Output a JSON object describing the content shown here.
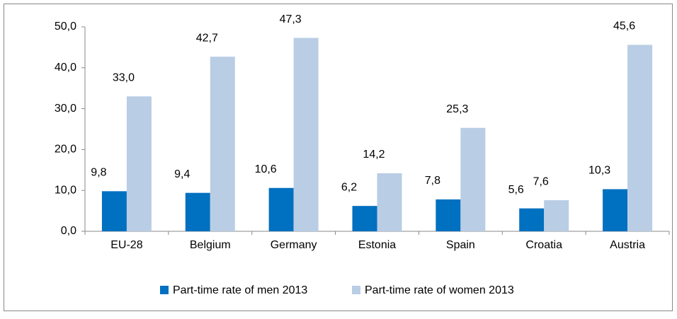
{
  "chart_data": {
    "type": "bar",
    "categories": [
      "EU-28",
      "Belgium",
      "Germany",
      "Estonia",
      "Spain",
      "Croatia",
      "Austria"
    ],
    "series": [
      {
        "name": "Part-time rate of men 2013",
        "color": "#0070c0",
        "values": [
          9.8,
          9.4,
          10.6,
          6.2,
          7.8,
          5.6,
          10.3
        ],
        "value_labels": [
          "9,8",
          "9,4",
          "10,6",
          "6,2",
          "7,8",
          "5,6",
          "10,3"
        ]
      },
      {
        "name": "Part-time rate of women 2013",
        "color": "#b9cde5",
        "values": [
          33.0,
          42.7,
          47.3,
          14.2,
          25.3,
          7.6,
          45.6
        ],
        "value_labels": [
          "33,0",
          "42,7",
          "47,3",
          "14,2",
          "25,3",
          "7,6",
          "45,6"
        ]
      }
    ],
    "ylim": [
      0,
      50
    ],
    "yticks": [
      {
        "value": 0,
        "label": "0,0"
      },
      {
        "value": 10,
        "label": "10,0"
      },
      {
        "value": 20,
        "label": "20,0"
      },
      {
        "value": 30,
        "label": "30,0"
      },
      {
        "value": 40,
        "label": "40,0"
      },
      {
        "value": 50,
        "label": "50,0"
      }
    ],
    "legend": "bottom"
  }
}
